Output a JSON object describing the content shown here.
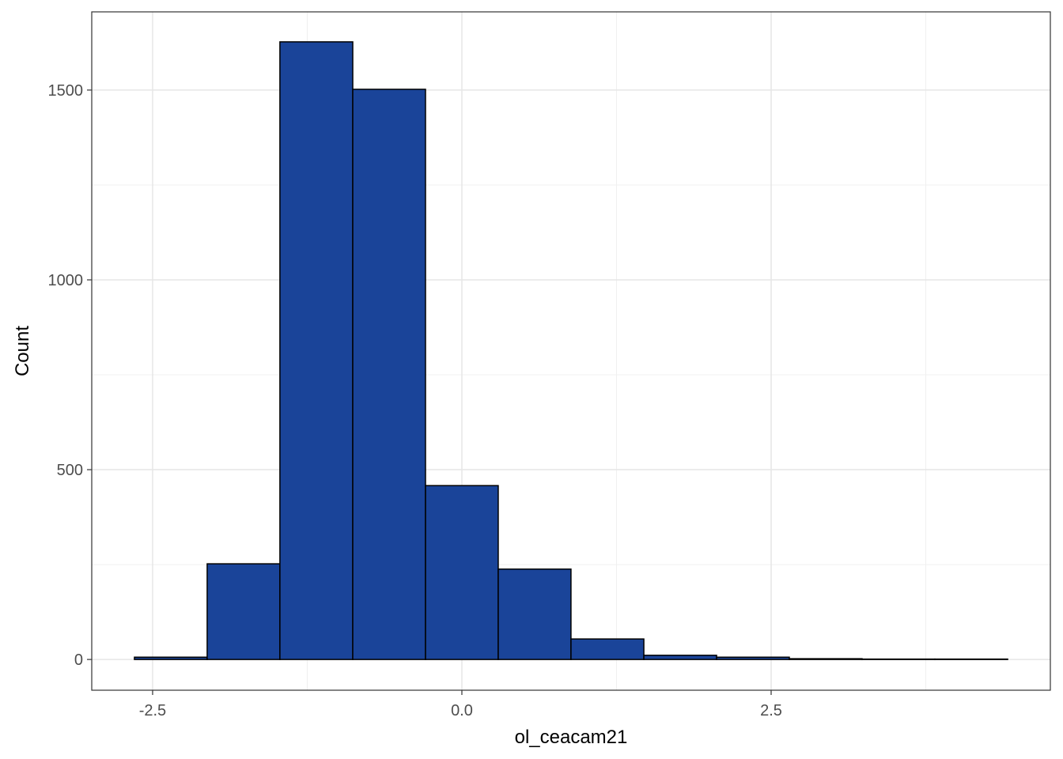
{
  "chart_data": {
    "type": "histogram",
    "x_label": "ol_ceacam21",
    "y_label": "Count",
    "bins": [
      -2.647,
      -2.059,
      -1.471,
      -0.882,
      -0.294,
      0.294,
      0.882,
      1.471,
      2.059,
      2.647,
      3.235,
      3.824,
      4.412
    ],
    "values": [
      6,
      252,
      1627,
      1502,
      458,
      238,
      54,
      11,
      6,
      2,
      1,
      1
    ],
    "color": "#1a4499",
    "edge_color": "#000000",
    "xlim": [
      -2.992,
      4.757
    ],
    "ylim": [
      -81,
      1706
    ],
    "xticks": [
      {
        "value": -2.5,
        "label": "-2.5"
      },
      {
        "value": 0,
        "label": "0.0"
      },
      {
        "value": 2.5,
        "label": "2.5"
      }
    ],
    "yticks": [
      0,
      500,
      1000,
      1500
    ],
    "x_minor_grid": [
      -1.25,
      1.25,
      3.75
    ],
    "y_minor_grid": [
      250,
      750,
      1250
    ],
    "grid": true
  }
}
